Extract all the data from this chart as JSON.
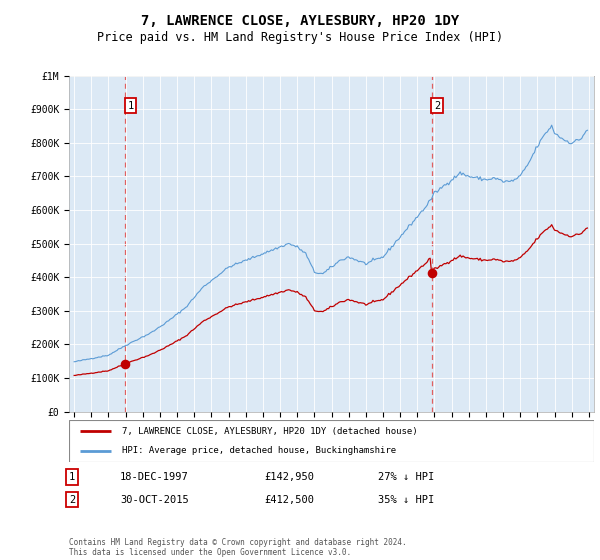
{
  "title": "7, LAWRENCE CLOSE, AYLESBURY, HP20 1DY",
  "subtitle": "Price paid vs. HM Land Registry's House Price Index (HPI)",
  "title_fontsize": 10,
  "subtitle_fontsize": 8.5,
  "hpi_color": "#5b9bd5",
  "price_color": "#c00000",
  "dashed_color": "#e06060",
  "bg_color": "#dce9f5",
  "ylim": [
    0,
    1000000
  ],
  "yticks": [
    0,
    100000,
    200000,
    300000,
    400000,
    500000,
    600000,
    700000,
    800000,
    900000,
    1000000
  ],
  "ytick_labels": [
    "£0",
    "£100K",
    "£200K",
    "£300K",
    "£400K",
    "£500K",
    "£600K",
    "£700K",
    "£800K",
    "£900K",
    "£1M"
  ],
  "legend_label_price": "7, LAWRENCE CLOSE, AYLESBURY, HP20 1DY (detached house)",
  "legend_label_hpi": "HPI: Average price, detached house, Buckinghamshire",
  "sale1_date_label": "18-DEC-1997",
  "sale1_price_label": "£142,950",
  "sale1_hpi_label": "27% ↓ HPI",
  "sale1_year": 1997.96,
  "sale1_price": 142950,
  "sale2_date_label": "30-OCT-2015",
  "sale2_price_label": "£412,500",
  "sale2_hpi_label": "35% ↓ HPI",
  "sale2_year": 2015.83,
  "sale2_price": 412500,
  "footer": "Contains HM Land Registry data © Crown copyright and database right 2024.\nThis data is licensed under the Open Government Licence v3.0."
}
